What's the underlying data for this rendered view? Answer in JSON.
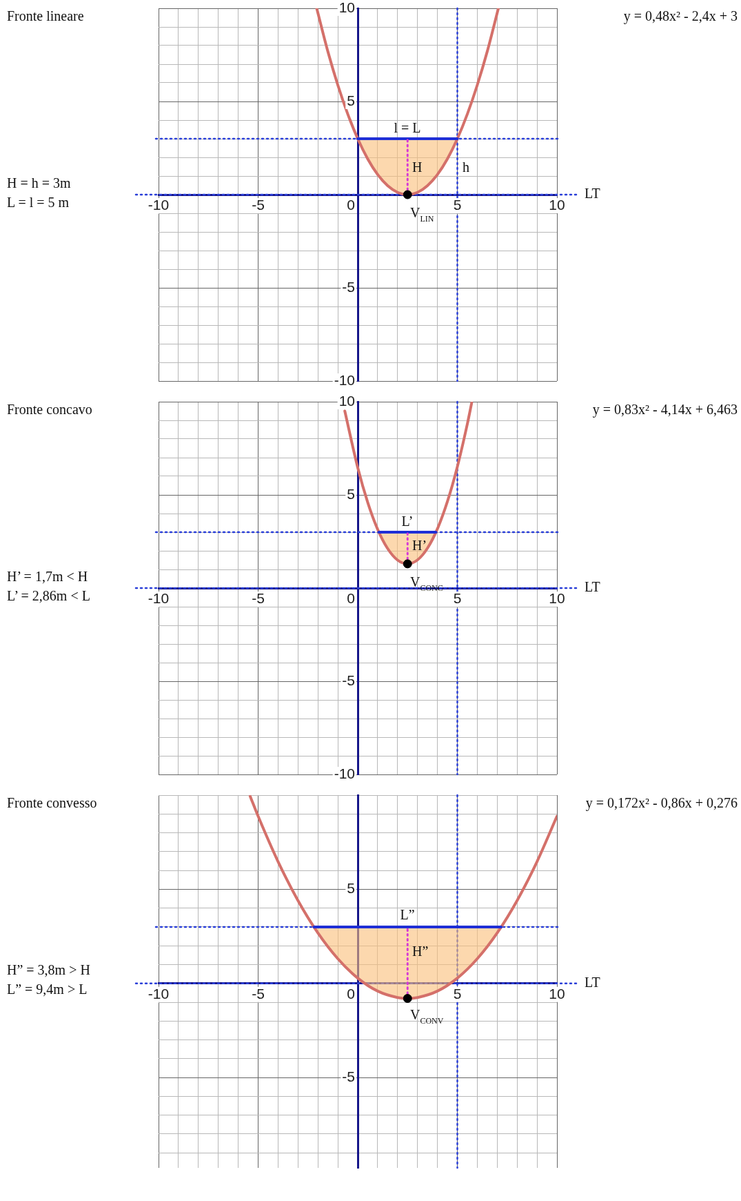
{
  "chart_data": [
    {
      "type": "line",
      "title": "Fronte lineare",
      "annotations": [
        "y = 0,48x² - 2,4x + 3",
        "H = h = 3m",
        "L = l = 5 m",
        "l = L",
        "H",
        "h",
        "V$_{LIN}$"
      ],
      "xlim": [
        -10,
        10
      ],
      "ylim": [
        -10,
        10
      ],
      "xticks": [
        -10,
        {
          "value": -9,
          "label": null
        },
        {
          "value": -8,
          "label": null
        },
        {
          "value": -7,
          "label": null
        },
        {
          "value": -6,
          "label": null
        },
        -5,
        {
          "value": -4,
          "label": null
        },
        {
          "value": -3,
          "label": null
        },
        {
          "value": -2,
          "label": null
        },
        {
          "value": -1,
          "label": null
        },
        0,
        {
          "value": 1,
          "label": null
        },
        {
          "value": 2,
          "label": null
        },
        {
          "value": 3,
          "label": null
        },
        {
          "value": 4,
          "label": null
        },
        5,
        {
          "value": 6,
          "label": null
        },
        {
          "value": 7,
          "label": null
        },
        {
          "value": 8,
          "label": null
        },
        {
          "value": 9,
          "label": null
        },
        10
      ],
      "yticks": [
        -10,
        {
          "value": -9,
          "label": null
        },
        {
          "value": -8,
          "label": null
        },
        {
          "value": -7,
          "label": null
        },
        {
          "value": -6,
          "label": null
        },
        -5,
        {
          "value": -4,
          "label": null
        },
        {
          "value": -3,
          "label": null
        },
        {
          "value": -2,
          "label": null
        },
        {
          "value": -1,
          "label": null
        },
        {
          "value": 0,
          "label": null
        },
        {
          "value": 1,
          "label": null
        },
        {
          "value": 2,
          "label": null
        },
        {
          "value": 3,
          "label": null
        },
        {
          "value": 4,
          "label": null
        },
        5,
        {
          "value": 6,
          "label": null
        },
        {
          "value": 7,
          "label": null
        },
        {
          "value": 8,
          "label": null
        },
        {
          "value": 9,
          "label": null
        },
        10
      ],
      "grid": true,
      "ref_lines": [
        {
          "axis": "y",
          "value": 0,
          "label": "LT",
          "line_style": "dotted",
          "color": "#2a3fd8"
        },
        {
          "axis": "y",
          "value": 3,
          "line_style": "dotted",
          "color": "#2a3fd8"
        },
        {
          "axis": "x",
          "value": 5,
          "line_style": "dotted",
          "color": "#2a3fd8"
        }
      ],
      "series": [
        {
          "color": "#d4706a",
          "x": [
            -2.06,
            -1.5,
            -1,
            -0.5,
            0,
            0.5,
            1,
            1.5,
            2,
            2.5,
            3,
            3.5,
            4,
            4.5,
            5,
            5.5,
            6,
            6.5,
            7.06
          ],
          "values": [
            10,
            7.68,
            5.88,
            4.32,
            3,
            1.92,
            1.08,
            0.48,
            0.12,
            0,
            0.12,
            0.48,
            1.08,
            1.92,
            3,
            4.32,
            5.88,
            7.68,
            10
          ]
        },
        {
          "color": "#1f2fd6",
          "x": [
            0,
            0.5,
            1,
            1.5,
            2,
            2.5,
            3,
            3.5,
            4,
            4.5,
            5
          ],
          "values": [
            3,
            3,
            3,
            3,
            3,
            3,
            3,
            3,
            3,
            3,
            3
          ],
          "lower": [
            3,
            1.92,
            1.08,
            0.48,
            0.12,
            0,
            0.12,
            0.48,
            1.08,
            1.92,
            3
          ],
          "upper": [
            3,
            3,
            3,
            3,
            3,
            3,
            3,
            3,
            3,
            3,
            3
          ]
        },
        {
          "color": "#d63ad6",
          "line_style": "dotted",
          "x": [
            2.5,
            2.5
          ],
          "values": [
            0,
            3
          ]
        },
        {
          "type": "scatter",
          "color": "#000000",
          "marker": "circle",
          "x": [
            2.5
          ],
          "values": [
            0
          ]
        }
      ]
    },
    {
      "type": "line",
      "title": "Fronte concavo",
      "annotations": [
        "y = 0,83x² - 4,14x + 6,463",
        "H’ = 1,7m < H",
        "L’ = 2,86m < L",
        "L’",
        "H’",
        "V$_{CONC}$"
      ],
      "xlim": [
        -10,
        10
      ],
      "ylim": [
        -10,
        10
      ],
      "xticks": [
        -10,
        {
          "value": -9,
          "label": null
        },
        {
          "value": -8,
          "label": null
        },
        {
          "value": -7,
          "label": null
        },
        {
          "value": -6,
          "label": null
        },
        -5,
        {
          "value": -4,
          "label": null
        },
        {
          "value": -3,
          "label": null
        },
        {
          "value": -2,
          "label": null
        },
        {
          "value": -1,
          "label": null
        },
        0,
        {
          "value": 1,
          "label": null
        },
        {
          "value": 2,
          "label": null
        },
        {
          "value": 3,
          "label": null
        },
        {
          "value": 4,
          "label": null
        },
        5,
        {
          "value": 6,
          "label": null
        },
        {
          "value": 7,
          "label": null
        },
        {
          "value": 8,
          "label": null
        },
        {
          "value": 9,
          "label": null
        },
        10
      ],
      "yticks": [
        -10,
        {
          "value": -9,
          "label": null
        },
        {
          "value": -8,
          "label": null
        },
        {
          "value": -7,
          "label": null
        },
        {
          "value": -6,
          "label": null
        },
        -5,
        {
          "value": -4,
          "label": null
        },
        {
          "value": -3,
          "label": null
        },
        {
          "value": -2,
          "label": null
        },
        {
          "value": -1,
          "label": null
        },
        {
          "value": 0,
          "label": null
        },
        {
          "value": 1,
          "label": null
        },
        {
          "value": 2,
          "label": null
        },
        {
          "value": 3,
          "label": null
        },
        {
          "value": 4,
          "label": null
        },
        5,
        {
          "value": 6,
          "label": null
        },
        {
          "value": 7,
          "label": null
        },
        {
          "value": 8,
          "label": null
        },
        {
          "value": 9,
          "label": null
        },
        10
      ],
      "grid": true,
      "ref_lines": [
        {
          "axis": "y",
          "value": 0,
          "label": "LT",
          "line_style": "dotted",
          "color": "#2a3fd8"
        },
        {
          "axis": "y",
          "value": 3,
          "line_style": "dotted",
          "color": "#2a3fd8"
        },
        {
          "axis": "x",
          "value": 5,
          "line_style": "dotted",
          "color": "#2a3fd8"
        }
      ],
      "series": [
        {
          "color": "#d4706a",
          "x": [
            -0.65,
            0,
            0.5,
            1,
            1.5,
            2,
            2.5,
            3,
            3.5,
            4,
            4.5,
            5,
            5.5,
            5.72
          ],
          "values": [
            9.5,
            6.46,
            4.6,
            3.15,
            2.12,
            1.5,
            1.3,
            1.51,
            2.14,
            3.18,
            4.64,
            6.51,
            8.8,
            9.94
          ]
        },
        {
          "color": "#1f2fd6",
          "x": [
            1.06,
            1.5,
            2,
            2.5,
            3,
            3.5,
            3.92
          ],
          "values": [
            3,
            3,
            3,
            3,
            3,
            3,
            3
          ],
          "lower": [
            3,
            2.12,
            1.5,
            1.3,
            1.51,
            2.14,
            3
          ],
          "upper": [
            3,
            3,
            3,
            3,
            3,
            3,
            3
          ]
        },
        {
          "color": "#d63ad6",
          "line_style": "dotted",
          "x": [
            2.5,
            2.5
          ],
          "values": [
            1.3,
            3
          ]
        },
        {
          "type": "scatter",
          "color": "#000000",
          "marker": "circle",
          "x": [
            2.5
          ],
          "values": [
            1.3
          ]
        }
      ]
    },
    {
      "type": "line",
      "title": "Fronte convesso",
      "annotations": [
        "y = 0,172x² - 0,86x + 0,276",
        "H” = 3,8m > H",
        "L” = 9,4m > L",
        "L”",
        "H”",
        "V$_{CONV}$"
      ],
      "xlim": [
        -10,
        10
      ],
      "ylim": [
        -9.8,
        10
      ],
      "xticks": [
        -10,
        {
          "value": -9,
          "label": null
        },
        {
          "value": -8,
          "label": null
        },
        {
          "value": -7,
          "label": null
        },
        {
          "value": -6,
          "label": null
        },
        -5,
        {
          "value": -4,
          "label": null
        },
        {
          "value": -3,
          "label": null
        },
        {
          "value": -2,
          "label": null
        },
        {
          "value": -1,
          "label": null
        },
        0,
        {
          "value": 1,
          "label": null
        },
        {
          "value": 2,
          "label": null
        },
        {
          "value": 3,
          "label": null
        },
        {
          "value": 4,
          "label": null
        },
        5,
        {
          "value": 6,
          "label": null
        },
        {
          "value": 7,
          "label": null
        },
        {
          "value": 8,
          "label": null
        },
        {
          "value": 9,
          "label": null
        },
        10
      ],
      "yticks": [
        {
          "value": -9,
          "label": null
        },
        {
          "value": -8,
          "label": null
        },
        {
          "value": -7,
          "label": null
        },
        {
          "value": -6,
          "label": null
        },
        -5,
        {
          "value": -4,
          "label": null
        },
        {
          "value": -3,
          "label": null
        },
        {
          "value": -2,
          "label": null
        },
        {
          "value": -1,
          "label": null
        },
        {
          "value": 0,
          "label": null
        },
        {
          "value": 1,
          "label": null
        },
        {
          "value": 2,
          "label": null
        },
        {
          "value": 3,
          "label": null
        },
        {
          "value": 4,
          "label": null
        },
        5,
        {
          "value": 6,
          "label": null
        },
        {
          "value": 7,
          "label": null
        },
        {
          "value": 8,
          "label": null
        },
        {
          "value": 9,
          "label": null
        },
        {
          "value": 10,
          "label": null
        }
      ],
      "grid": true,
      "ref_lines": [
        {
          "axis": "y",
          "value": 0,
          "label": "LT",
          "line_style": "dotted",
          "color": "#2a3fd8"
        },
        {
          "axis": "y",
          "value": 3,
          "line_style": "dotted",
          "color": "#2a3fd8"
        },
        {
          "axis": "x",
          "value": 5,
          "line_style": "dotted",
          "color": "#2a3fd8"
        }
      ],
      "series": [
        {
          "color": "#d4706a",
          "x": [
            -5.4,
            -5,
            -4,
            -3,
            -2,
            -1,
            0,
            1,
            2,
            2.5,
            3,
            4,
            5,
            6,
            7,
            8,
            9,
            10
          ],
          "values": [
            9.94,
            8.88,
            6.47,
            4.4,
            2.68,
            1.31,
            0.28,
            -0.41,
            -0.75,
            -0.8,
            -0.75,
            -0.41,
            0.28,
            1.31,
            2.68,
            4.4,
            6.47,
            8.88
          ]
        },
        {
          "color": "#1f2fd6",
          "x": [
            -2.2,
            -1,
            0,
            1,
            2,
            2.5,
            3,
            4,
            5,
            6,
            7.2
          ],
          "values": [
            3,
            3,
            3,
            3,
            3,
            3,
            3,
            3,
            3,
            3,
            3
          ],
          "lower": [
            3,
            1.31,
            0.28,
            -0.41,
            -0.75,
            -0.8,
            -0.75,
            -0.41,
            0.28,
            1.31,
            3
          ],
          "upper": [
            3,
            3,
            3,
            3,
            3,
            3,
            3,
            3,
            3,
            3,
            3
          ]
        },
        {
          "color": "#d63ad6",
          "line_style": "dotted",
          "x": [
            2.5,
            2.5
          ],
          "values": [
            -0.8,
            3
          ]
        },
        {
          "type": "scatter",
          "color": "#000000",
          "marker": "circle",
          "x": [
            2.5
          ],
          "values": [
            -0.8
          ]
        }
      ]
    }
  ]
}
